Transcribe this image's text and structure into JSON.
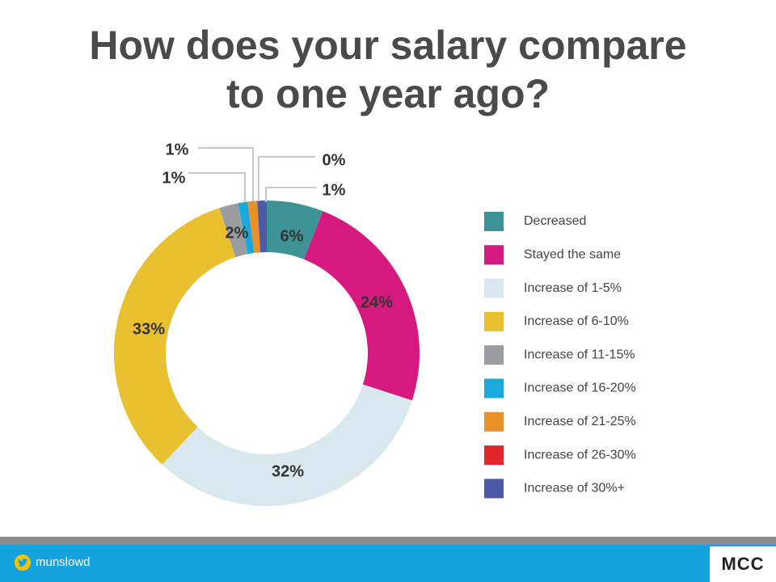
{
  "title": {
    "line1": "How does your salary compare",
    "line2": "to one year ago?"
  },
  "chart_data": {
    "type": "pie",
    "variant": "donut",
    "title": "How does your salary compare to one year ago?",
    "legend_position": "right",
    "slices": [
      {
        "name": "Decreased",
        "value": 6,
        "label": "6%",
        "color": "#3e9396"
      },
      {
        "name": "Stayed the same",
        "value": 24,
        "label": "24%",
        "color": "#d5197f"
      },
      {
        "name": "Increase of 1-5%",
        "value": 32,
        "label": "32%",
        "color": "#d8e8ee"
      },
      {
        "name": "Increase of 6-10%",
        "value": 33,
        "label": "33%",
        "color": "#e9c02f"
      },
      {
        "name": "Increase of 11-15%",
        "value": 2,
        "label": "2%",
        "color": "#9b9ca0"
      },
      {
        "name": "Increase of 16-20%",
        "value": 1,
        "label": "1%",
        "color": "#1ba8dc"
      },
      {
        "name": "Increase of 21-25%",
        "value": 1,
        "label": "1%",
        "color": "#e89128"
      },
      {
        "name": "Increase of 26-30%",
        "value": 0,
        "label": "0%",
        "color": "#e2262d"
      },
      {
        "name": "Increase of 30%+",
        "value": 1,
        "label": "1%",
        "color": "#4c5aa8"
      }
    ]
  },
  "footer": {
    "twitter_handle": "munslowd",
    "twitter_icon": "twitter-bird-icon",
    "brand": "MCC",
    "bar_color": "#15a3e0",
    "stripe_color": "#8c8c8c"
  }
}
